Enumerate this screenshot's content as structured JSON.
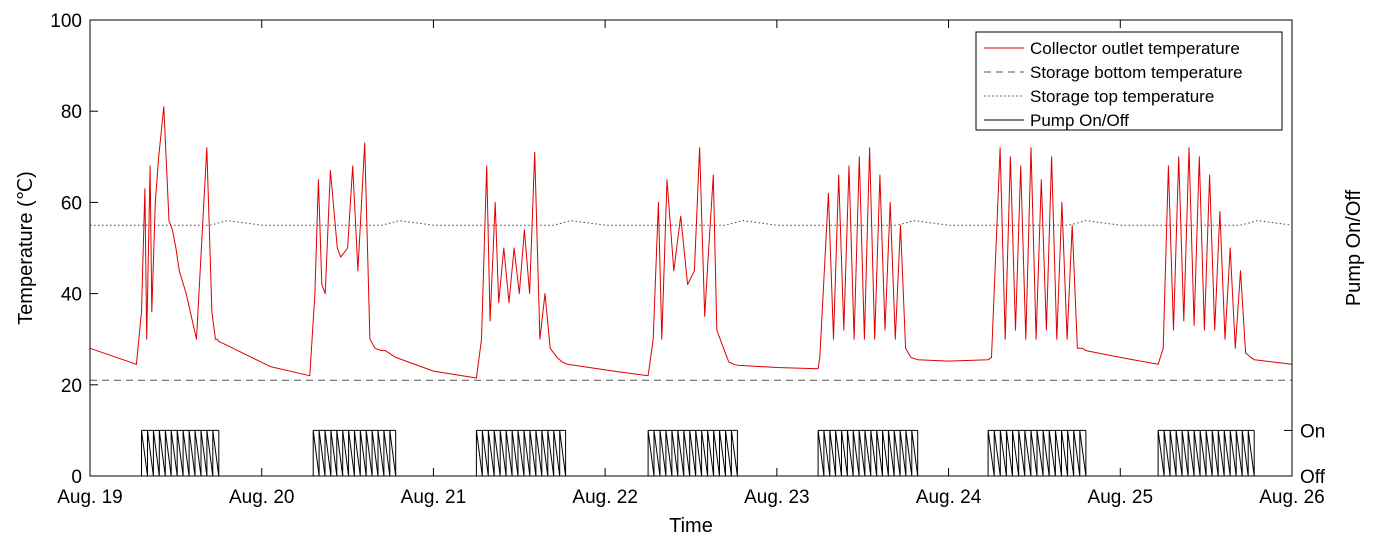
{
  "chart_data": {
    "type": "line",
    "xlabel": "Time",
    "ylabel": "Temperature (℃)",
    "y2label": "Pump On/Off",
    "xlim": [
      0,
      7
    ],
    "ylim": [
      0,
      100
    ],
    "grid": false,
    "legend_position": "top-right",
    "x_ticks": [
      {
        "value": 0,
        "label": "Aug. 19"
      },
      {
        "value": 1,
        "label": "Aug. 20"
      },
      {
        "value": 2,
        "label": "Aug. 21"
      },
      {
        "value": 3,
        "label": "Aug. 22"
      },
      {
        "value": 4,
        "label": "Aug. 23"
      },
      {
        "value": 5,
        "label": "Aug. 24"
      },
      {
        "value": 6,
        "label": "Aug. 25"
      },
      {
        "value": 7,
        "label": "Aug. 26"
      }
    ],
    "y_ticks": [
      {
        "value": 0,
        "label": "0"
      },
      {
        "value": 20,
        "label": "20"
      },
      {
        "value": 40,
        "label": "40"
      },
      {
        "value": 60,
        "label": "60"
      },
      {
        "value": 80,
        "label": "80"
      },
      {
        "value": 100,
        "label": "100"
      }
    ],
    "y2_ticks": [
      {
        "value": 0,
        "label": "Off"
      },
      {
        "value": 10,
        "label": "On"
      }
    ],
    "series": [
      {
        "name": "Collector outlet temperature",
        "color": "#e00000",
        "style": "solid",
        "x": [
          0,
          0.27,
          0.3,
          0.32,
          0.33,
          0.35,
          0.36,
          0.38,
          0.4,
          0.43,
          0.46,
          0.48,
          0.5,
          0.52,
          0.56,
          0.62,
          0.68,
          0.7,
          0.71,
          0.73,
          0.74,
          0.75,
          0.78,
          1.05,
          1.28,
          1.31,
          1.33,
          1.35,
          1.37,
          1.4,
          1.44,
          1.46,
          1.5,
          1.53,
          1.56,
          1.6,
          1.63,
          1.66,
          1.7,
          1.72,
          1.74,
          1.76,
          1.78,
          2.0,
          2.25,
          2.28,
          2.31,
          2.33,
          2.36,
          2.38,
          2.41,
          2.44,
          2.47,
          2.5,
          2.53,
          2.56,
          2.59,
          2.62,
          2.65,
          2.68,
          2.72,
          2.75,
          2.78,
          3.05,
          3.25,
          3.28,
          3.31,
          3.33,
          3.36,
          3.4,
          3.44,
          3.48,
          3.52,
          3.55,
          3.58,
          3.6,
          3.63,
          3.65,
          3.67,
          3.7,
          3.72,
          3.75,
          3.77,
          4.0,
          4.24,
          4.25,
          4.3,
          4.33,
          4.36,
          4.39,
          4.42,
          4.45,
          4.48,
          4.51,
          4.54,
          4.57,
          4.6,
          4.63,
          4.66,
          4.69,
          4.72,
          4.75,
          4.78,
          4.82,
          5.0,
          5.23,
          5.25,
          5.3,
          5.33,
          5.36,
          5.39,
          5.42,
          5.45,
          5.48,
          5.51,
          5.54,
          5.57,
          5.6,
          5.63,
          5.66,
          5.69,
          5.72,
          5.75,
          5.78,
          5.8,
          6.0,
          6.22,
          6.25,
          6.28,
          6.31,
          6.34,
          6.37,
          6.4,
          6.43,
          6.46,
          6.49,
          6.52,
          6.55,
          6.58,
          6.61,
          6.64,
          6.67,
          6.7,
          6.73,
          6.76,
          6.78,
          7.0
        ],
        "values": [
          28,
          24.5,
          36,
          63,
          30,
          68,
          36,
          60,
          70,
          81,
          56,
          54,
          50,
          45,
          40,
          30,
          72,
          48,
          36,
          30,
          30,
          29.5,
          29,
          24,
          22,
          40,
          65,
          42,
          40,
          67,
          50,
          48,
          50,
          68,
          45,
          73,
          30,
          28,
          27.5,
          27.5,
          27,
          26.5,
          26,
          23,
          21.5,
          30,
          68,
          34,
          60,
          38,
          50,
          38,
          50,
          40,
          54,
          40,
          71,
          30,
          40,
          28,
          26,
          25,
          24.5,
          23,
          22,
          30,
          60,
          30,
          65,
          45,
          57,
          42,
          45,
          72,
          35,
          48,
          66,
          32,
          30,
          27,
          25,
          24.5,
          24.3,
          23.8,
          23.5,
          26,
          62,
          30,
          66,
          32,
          68,
          30,
          70,
          30,
          72,
          30,
          66,
          32,
          60,
          30,
          55,
          28,
          26,
          25.5,
          25.2,
          25.5,
          26,
          72,
          30,
          70,
          32,
          68,
          30,
          72,
          30,
          65,
          32,
          70,
          30,
          60,
          30,
          55,
          28,
          28,
          27.5,
          26,
          24.5,
          28,
          68,
          32,
          70,
          34,
          72,
          33,
          70,
          32,
          66,
          32,
          58,
          30,
          50,
          28,
          45,
          27,
          26,
          25.5,
          24.5
        ]
      },
      {
        "name": "Storage bottom temperature",
        "color": "#555555",
        "style": "dashed",
        "x": [
          0,
          7
        ],
        "values": [
          21,
          21
        ]
      },
      {
        "name": "Storage top temperature",
        "color": "#444444",
        "style": "dotted",
        "x": [
          0,
          0.7,
          0.8,
          1.0,
          1.7,
          1.8,
          2.0,
          2.7,
          2.8,
          3.0,
          3.7,
          3.8,
          4.0,
          4.7,
          4.8,
          5.0,
          5.7,
          5.8,
          6.0,
          6.7,
          6.8,
          7.0
        ],
        "values": [
          55,
          55,
          56,
          55,
          55,
          56,
          55,
          55,
          56,
          55,
          55,
          56,
          55,
          55,
          56,
          55,
          55,
          56,
          55,
          55,
          56,
          55
        ]
      },
      {
        "name": "Pump On/Off",
        "color": "#000000",
        "style": "solid",
        "axis": "secondary",
        "on_intervals": [
          [
            0.3,
            0.75
          ],
          [
            1.3,
            1.78
          ],
          [
            2.25,
            2.77
          ],
          [
            3.25,
            3.77
          ],
          [
            4.24,
            4.82
          ],
          [
            5.23,
            5.8
          ],
          [
            6.22,
            6.78
          ]
        ]
      }
    ],
    "legend": [
      "Collector outlet temperature",
      "Storage bottom temperature",
      "Storage top temperature",
      "Pump On/Off"
    ]
  }
}
